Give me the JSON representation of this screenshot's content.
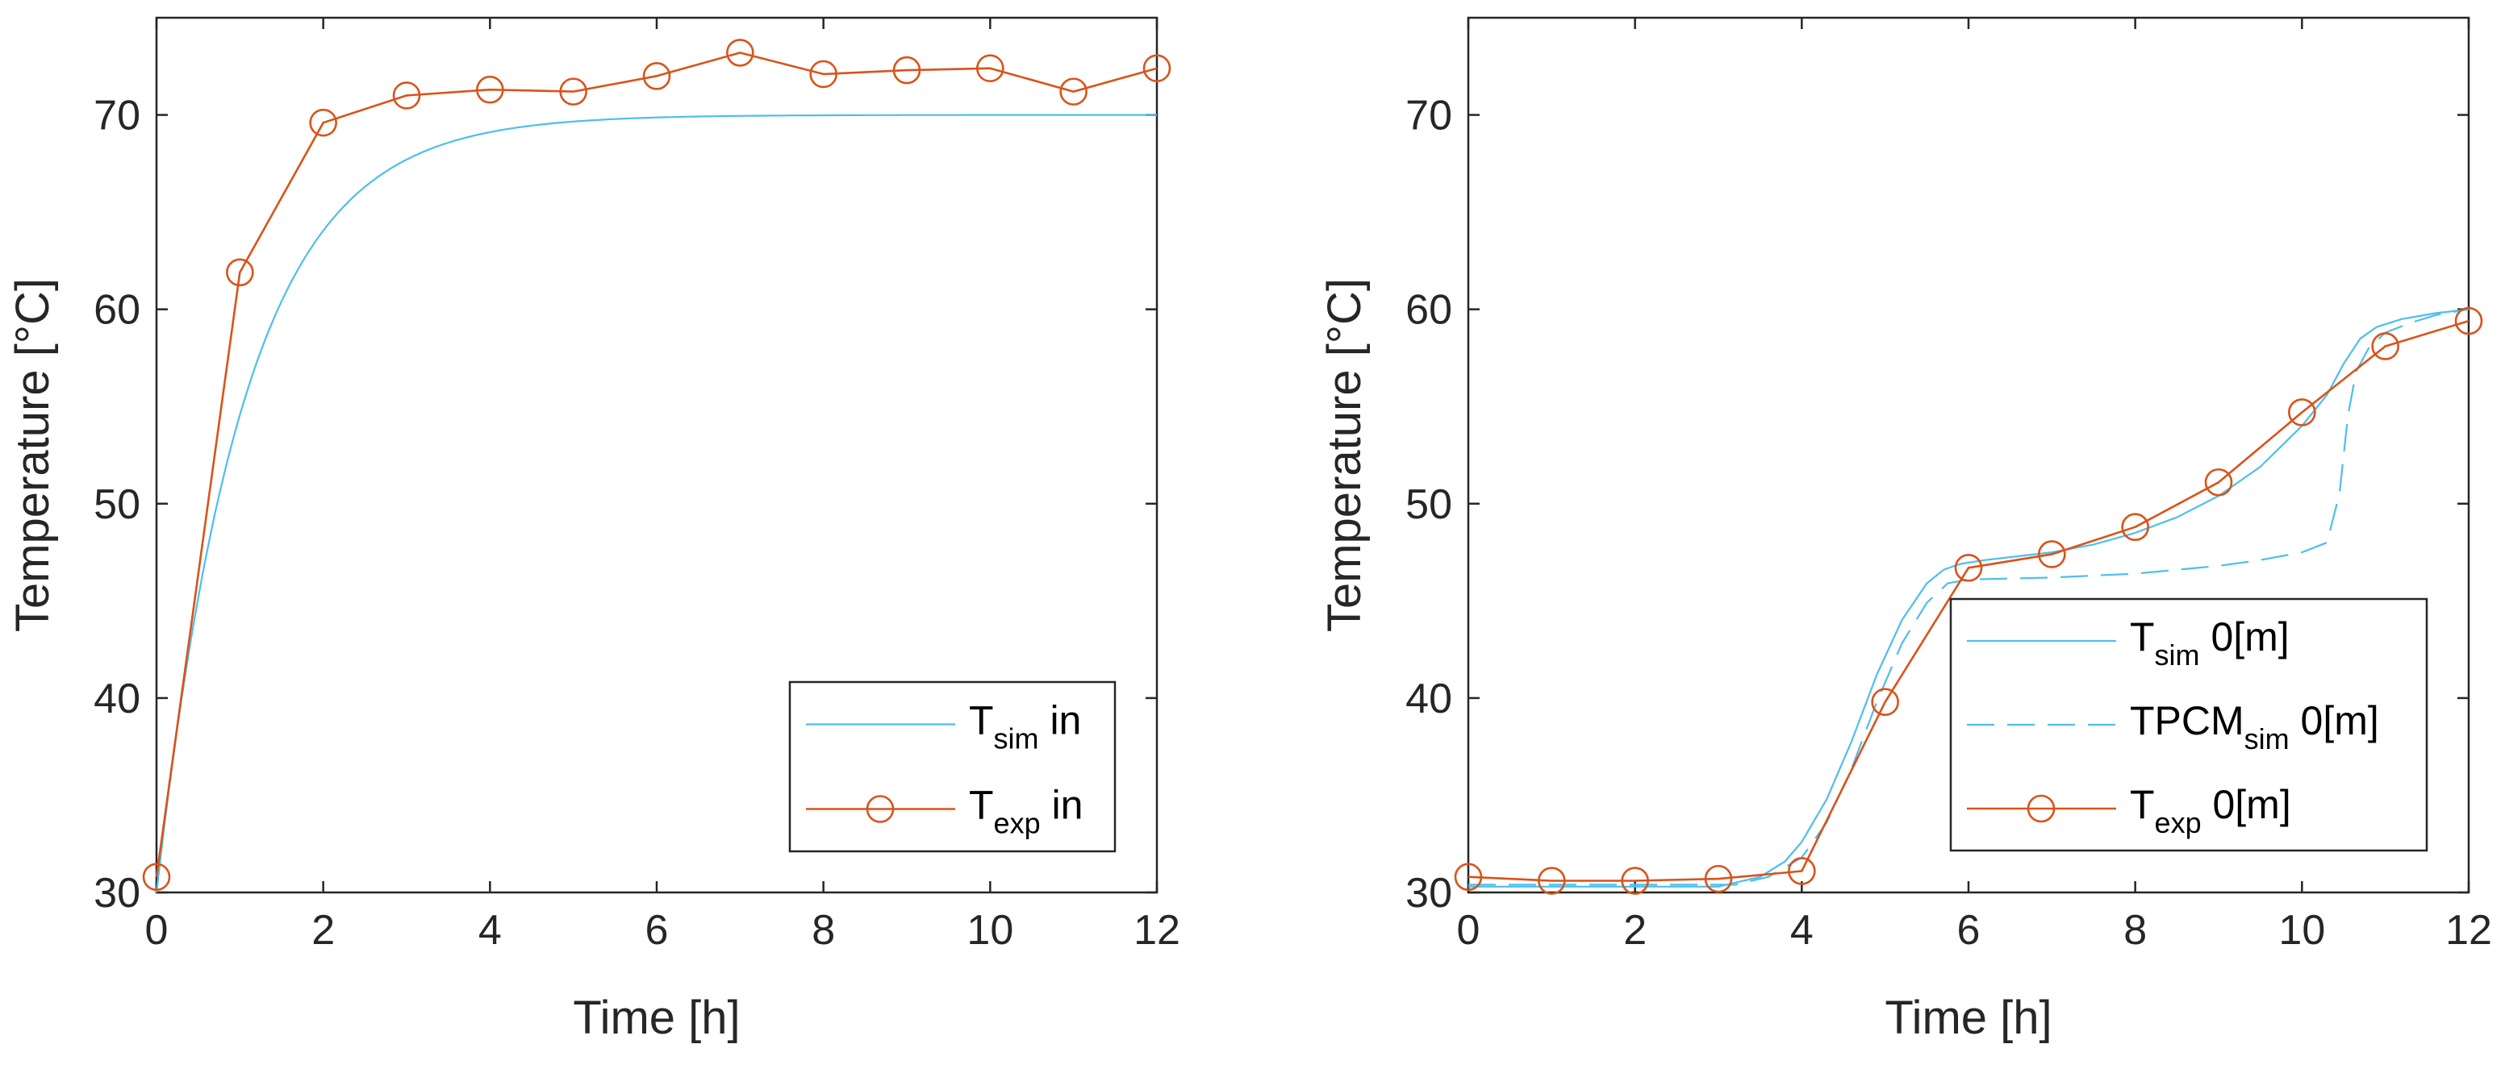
{
  "chart_data": [
    {
      "type": "line",
      "xlabel": "Time [h]",
      "ylabel": "Temperature [°C]",
      "xlim": [
        0,
        12
      ],
      "ylim": [
        30,
        75
      ],
      "xticks": [
        0,
        2,
        4,
        6,
        8,
        10,
        12
      ],
      "yticks": [
        30,
        40,
        50,
        60,
        70
      ],
      "grid": false,
      "legend_position": "bottom-right",
      "series": [
        {
          "name": "T_sim in",
          "legend_main": "T",
          "legend_sub": "sim",
          "legend_suffix": " in",
          "style": "solid",
          "color": "#4DBEEE",
          "marker": "none",
          "model": {
            "kind": "exp_rise",
            "start": 30,
            "end": 70,
            "tau": 1.05
          }
        },
        {
          "name": "T_exp in",
          "legend_main": "T",
          "legend_sub": "exp",
          "legend_suffix": " in",
          "style": "solid",
          "color": "#D95319",
          "marker": "circle",
          "x": [
            0,
            1,
            2,
            3,
            4,
            5,
            6,
            7,
            8,
            9,
            10,
            11,
            12
          ],
          "y": [
            30.8,
            61.9,
            69.6,
            71.0,
            71.3,
            71.2,
            72.0,
            73.2,
            72.1,
            72.3,
            72.4,
            71.2,
            72.4
          ]
        }
      ]
    },
    {
      "type": "line",
      "xlabel": "Time [h]",
      "ylabel": "Temperature [°C]",
      "xlim": [
        0,
        12
      ],
      "ylim": [
        30,
        75
      ],
      "xticks": [
        0,
        2,
        4,
        6,
        8,
        10,
        12
      ],
      "yticks": [
        30,
        40,
        50,
        60,
        70
      ],
      "grid": false,
      "legend_position": "bottom-right",
      "series": [
        {
          "name": "T_sim 0[m]",
          "legend_main": "T",
          "legend_sub": "sim",
          "legend_suffix": " 0[m]",
          "style": "solid",
          "color": "#4DBEEE",
          "marker": "none",
          "x": [
            0,
            3.0,
            3.5,
            3.8,
            4.0,
            4.3,
            4.6,
            4.9,
            5.2,
            5.5,
            5.7,
            5.9,
            6.2,
            6.6,
            7.0,
            7.5,
            8.0,
            8.5,
            9.0,
            9.5,
            10.0,
            10.3,
            10.5,
            10.7,
            10.9,
            11.2,
            11.6,
            12.0
          ],
          "y": [
            30.3,
            30.3,
            30.8,
            31.6,
            32.6,
            34.8,
            37.8,
            41.2,
            44.0,
            45.9,
            46.6,
            46.9,
            47.1,
            47.3,
            47.5,
            47.9,
            48.5,
            49.3,
            50.4,
            51.9,
            54.0,
            55.6,
            57.2,
            58.5,
            59.1,
            59.5,
            59.8,
            60.0
          ]
        },
        {
          "name": "TPCM_sim 0[m]",
          "legend_main": "TPCM",
          "legend_sub": "sim",
          "legend_suffix": " 0[m]",
          "style": "dashed",
          "color": "#4DBEEE",
          "marker": "none",
          "x": [
            0,
            3.2,
            3.6,
            4.0,
            4.3,
            4.6,
            4.9,
            5.2,
            5.5,
            5.75,
            6.0,
            6.5,
            7.0,
            8.0,
            9.0,
            9.5,
            10.0,
            10.3,
            10.45,
            10.55,
            10.65,
            10.8,
            11.0,
            11.3,
            11.6,
            12.0
          ],
          "y": [
            30.4,
            30.4,
            30.8,
            31.8,
            33.6,
            36.4,
            39.8,
            42.8,
            44.9,
            45.9,
            46.1,
            46.15,
            46.2,
            46.4,
            46.8,
            47.1,
            47.5,
            48.0,
            50.5,
            54.5,
            56.8,
            58.0,
            58.8,
            59.3,
            59.7,
            60.0
          ]
        },
        {
          "name": "T_exp 0[m]",
          "legend_main": "T",
          "legend_sub": "exp",
          "legend_suffix": " 0[m]",
          "style": "solid",
          "color": "#D95319",
          "marker": "circle",
          "x": [
            0,
            1,
            2,
            3,
            4,
            5,
            6,
            7,
            8,
            9,
            10,
            11,
            12
          ],
          "y": [
            30.8,
            30.6,
            30.6,
            30.7,
            31.1,
            39.8,
            46.7,
            47.4,
            48.8,
            51.1,
            54.7,
            58.1,
            59.4
          ]
        }
      ]
    }
  ]
}
